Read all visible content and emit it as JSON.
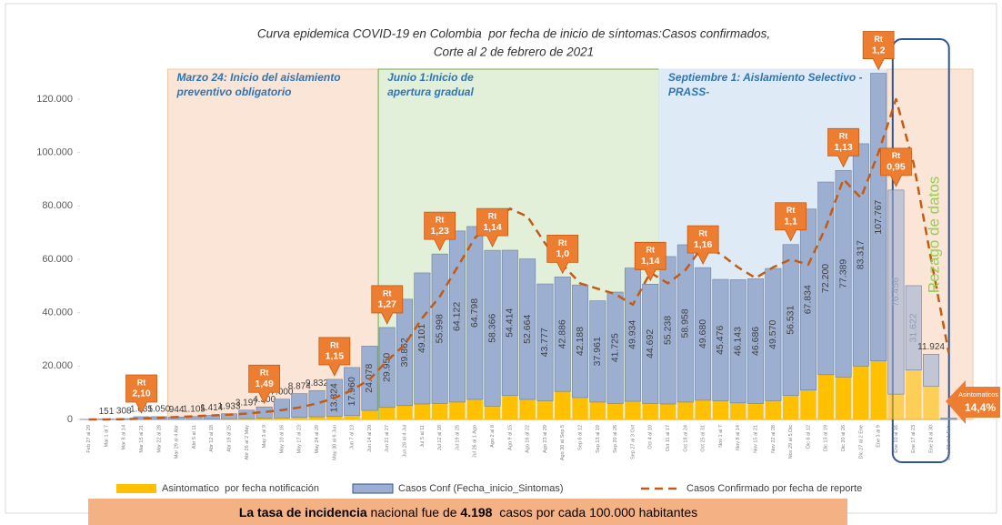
{
  "chart_data": {
    "type": "stacked_bar_line",
    "title_lines": [
      "Curva epidemica COVID-19 en Colombia  por fecha de inicio de síntomas:Casos confirmados,",
      "Corte al 2 de febrero de 2021"
    ],
    "categories": [
      "Feb 27 al 29",
      "Mar 1 al 7",
      "Mar 8 al 14",
      "Mar 15 al 21",
      "Mar 22 al 28",
      "Mar 29 al 4 Abr",
      "Abr 5 al 11",
      "Abr 12 al 18",
      "Abr 19 al 25",
      "Abr 26 al 2 May",
      "May 3 al 9",
      "May 10 al 16",
      "May 17 al 23",
      "May 24 al 29",
      "May 30 al 6 Jun",
      "Jun 7 al 13",
      "Jun 14 al 20",
      "Jun 21 al 27",
      "Jun 28 al 4 Jul",
      "Jul 5 al 11",
      "Jul 12 al 18",
      "Jul 19 al 25",
      "Jul 26 al 1 Ago",
      "Ago 2 al 8",
      "Ago 9 al 15",
      "Ago 16 al 22",
      "Ago 23 al 29",
      "Ago 30 al Sep 5",
      "Sep 6 al 12",
      "Sep 13 al 19",
      "Sep 20 al 26",
      "Sep 27 al 3 Oct",
      "Oct 4 al 10",
      "Oct 11 al 17",
      "Oct 18 al 24",
      "Oct 25 al 31",
      "Nov 1 al 7",
      "Nov 8 al 14",
      "Nov 15 al 21",
      "Nov 22 al 28",
      "Nov 29 al 5 Dic",
      "Dic 6 al 12",
      "Dic 13 al 19",
      "Dic 20 al 26",
      "Dic 27 al 2 Ene",
      "Ene 3 al 9",
      "Ene 10 al 16",
      "Ene 17 al 23",
      "Ene 24 al 30",
      "Ene 31 al 1 Feb"
    ],
    "series": [
      {
        "name": "Asintomatico  por fecha notificación",
        "color": "#ffc000",
        "stack": true,
        "values": [
          0,
          0,
          0,
          0,
          0,
          0,
          0,
          100,
          200,
          300,
          400,
          600,
          800,
          1000,
          1200,
          1500,
          3400,
          4500,
          5200,
          5800,
          6000,
          6500,
          7500,
          5000,
          9000,
          7500,
          7000,
          10500,
          8200,
          6500,
          6000,
          6800,
          6000,
          5800,
          6500,
          7200,
          7000,
          6200,
          6000,
          7000,
          9000,
          11000,
          16768,
          15909,
          20000,
          21935,
          9500,
          18500,
          12500,
          0
        ]
      },
      {
        "name": "Casos Conf (Fecha_inicio_Sintomas)",
        "color": "#9dafd0",
        "stack": true,
        "values": [
          15,
          151,
          308,
          1035,
          1050,
          944,
          1105,
          1414,
          1933,
          3197,
          4300,
          7000,
          8874,
          9832,
          13824,
          17960,
          24078,
          29950,
          39862,
          49101,
          55998,
          64122,
          64798,
          58366,
          54414,
          52664,
          43777,
          42886,
          42188,
          37961,
          41725,
          49934,
          44692,
          55238,
          58958,
          49680,
          45476,
          46143,
          46686,
          49570,
          56531,
          67834,
          72200,
          77389,
          83317,
          107767,
          76456,
          31622,
          11924,
          500
        ],
        "value_labels": [
          null,
          "151",
          "308",
          "1.035",
          "1.050",
          "944",
          "1.105",
          "1.414",
          "1.933",
          "3.197",
          "4.300",
          "7.000",
          "8.874",
          "9.832",
          "13.824",
          "17.960",
          "24.078",
          "29.950",
          "39.862",
          "49.101",
          "55.998",
          "64.122",
          "64.798",
          "58.366",
          "54.414",
          "52.664",
          "43.777",
          "42.886",
          "42.188",
          "37.961",
          "41.725",
          "49.934",
          "44.692",
          "55.238",
          "58.958",
          "49.680",
          "45.476",
          "46.143",
          "46.686",
          "49.570",
          "56.531",
          "67.834",
          "72.200",
          "77.389",
          "83.317",
          "107.767",
          "76.456",
          "31.622",
          "11.924",
          null
        ]
      },
      {
        "name": "Casos Confirmado por fecha de reporte",
        "color": "#c55a11",
        "type": "line",
        "values": [
          0,
          0,
          100,
          300,
          600,
          900,
          1200,
          1500,
          1800,
          2200,
          2800,
          3500,
          4500,
          6000,
          8000,
          11000,
          15000,
          22000,
          28000,
          38000,
          46000,
          57000,
          68000,
          74000,
          79000,
          76000,
          66000,
          58000,
          51000,
          49000,
          47000,
          43000,
          55000,
          51000,
          56000,
          65000,
          62000,
          57000,
          53000,
          57000,
          60000,
          58000,
          72000,
          90000,
          83000,
          100000,
          120000,
          96000,
          60000,
          25000
        ]
      }
    ],
    "ylim": [
      0,
      120000
    ],
    "yticks": [
      0,
      {
        "value": 20000,
        "label": "20.000"
      },
      {
        "value": 40000,
        "label": "40.000"
      },
      {
        "value": 60000,
        "label": "60.000"
      },
      {
        "value": 80000,
        "label": "80.000"
      },
      {
        "value": 100000,
        "label": "100.000"
      },
      {
        "value": 120000,
        "label": "120.000"
      }
    ],
    "grid": false,
    "regions": [
      {
        "from": "Mar 29 al 4 Abr",
        "to": "Jun 14 al 20",
        "color": "#fbe5d6",
        "border": "#f4c7a1",
        "lines": [
          "Marzo 24: Inicio del aislamiento",
          "preventivo obligatorio"
        ]
      },
      {
        "from": "Jun 21 al 27",
        "to": "Oct 4 al 10",
        "color": "#e2efd9",
        "border": "#70ad47",
        "lines": [
          "Junio 1:Inicio de",
          "apertura gradual"
        ]
      },
      {
        "from": "Oct 11 al 17",
        "to": "Ene 3 al 9",
        "color": "#deebf7",
        "border": "#deebf7",
        "lines": [
          "Septiembre 1: Aislamiento Selectivo -",
          "PRASS-"
        ]
      },
      {
        "from": "Ene 10 al 16",
        "to": "Ene 31 al 1 Feb",
        "color": "#fbe5d6",
        "border": "#f4c7a1",
        "lines": []
      }
    ],
    "rezago": {
      "from": "Ene 10 al 16",
      "to": "Ene 24 al 30",
      "label": "Rezago de datos"
    },
    "rt_label": "Rt",
    "rt": [
      {
        "category": "Mar 15 al 21",
        "value": 2.1,
        "value_label": "2,10"
      },
      {
        "category": "May 3 al 9",
        "value": 1.49,
        "value_label": "1,49"
      },
      {
        "category": "May 30 al 6 Jun",
        "value": 1.15,
        "value_label": "1,15"
      },
      {
        "category": "Jun 21 al 27",
        "value": 1.27,
        "value_label": "1,27"
      },
      {
        "category": "Jul 12 al 18",
        "value": 1.23,
        "value_label": "1,23"
      },
      {
        "category": "Ago 2 al 8",
        "value": 1.14,
        "value_label": "1,14"
      },
      {
        "category": "Ago 30 al Sep 5",
        "value": 1.0,
        "value_label": "1,0"
      },
      {
        "category": "Oct 4 al 10",
        "value": 1.14,
        "value_label": "1,14"
      },
      {
        "category": "Oct 25 al 31",
        "value": 1.16,
        "value_label": "1,16"
      },
      {
        "category": "Nov 29 al 5 Dic",
        "value": 1.1,
        "value_label": "1,1"
      },
      {
        "category": "Dic 20 al 26",
        "value": 1.13,
        "value_label": "1,13"
      },
      {
        "category": "Ene 3 al 9",
        "value": 1.2,
        "value_label": "1,2"
      },
      {
        "category": "Ene 10 al 16",
        "value": 0.95,
        "value_label": "0,95"
      }
    ],
    "asymptomatic_callout": {
      "label": "Asintomaticos",
      "value": 14.4,
      "value_label": "14,4%"
    },
    "banner": [
      {
        "text": "La tasa de incidencia",
        "bold": true
      },
      {
        "text": " nacional fue de ",
        "bold": false
      },
      {
        "text": "4.198",
        "bold": true
      },
      {
        "text": "  casos por cada 100.000 habitantes",
        "bold": false
      }
    ]
  }
}
